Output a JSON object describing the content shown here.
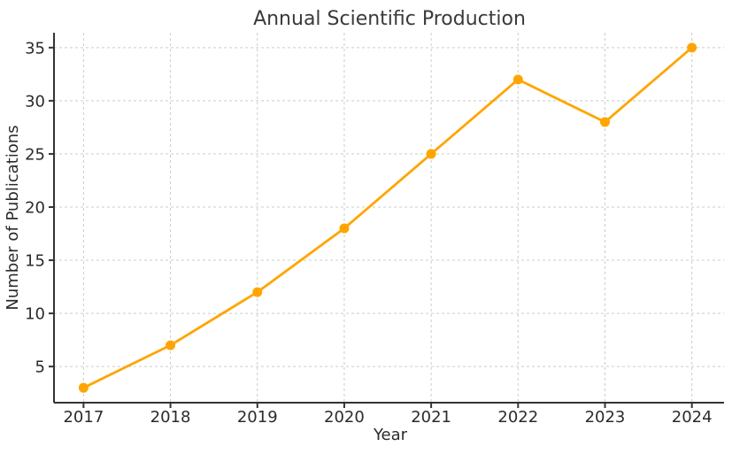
{
  "chart_data": {
    "type": "line",
    "title": "Annual Scientific Production",
    "xlabel": "Year",
    "ylabel": "Number of Publications",
    "x": [
      2017,
      2018,
      2019,
      2020,
      2021,
      2022,
      2023,
      2024
    ],
    "values": [
      3,
      7,
      12,
      18,
      25,
      32,
      28,
      35
    ],
    "yticks": [
      5,
      10,
      15,
      20,
      25,
      30,
      35
    ],
    "xlim": [
      2016.66,
      2024.37
    ],
    "ylim": [
      1.6,
      36.4
    ],
    "grid": true,
    "grid_style": "dashed",
    "legend": "none",
    "line_color": "#FFA500",
    "marker": "circle",
    "marker_color": "#FFA500",
    "grid_color": "#cccccc",
    "axis_color": "#333333",
    "text_color": "#2b2b2b",
    "title_color": "#3a3a3a",
    "background": "#ffffff"
  }
}
